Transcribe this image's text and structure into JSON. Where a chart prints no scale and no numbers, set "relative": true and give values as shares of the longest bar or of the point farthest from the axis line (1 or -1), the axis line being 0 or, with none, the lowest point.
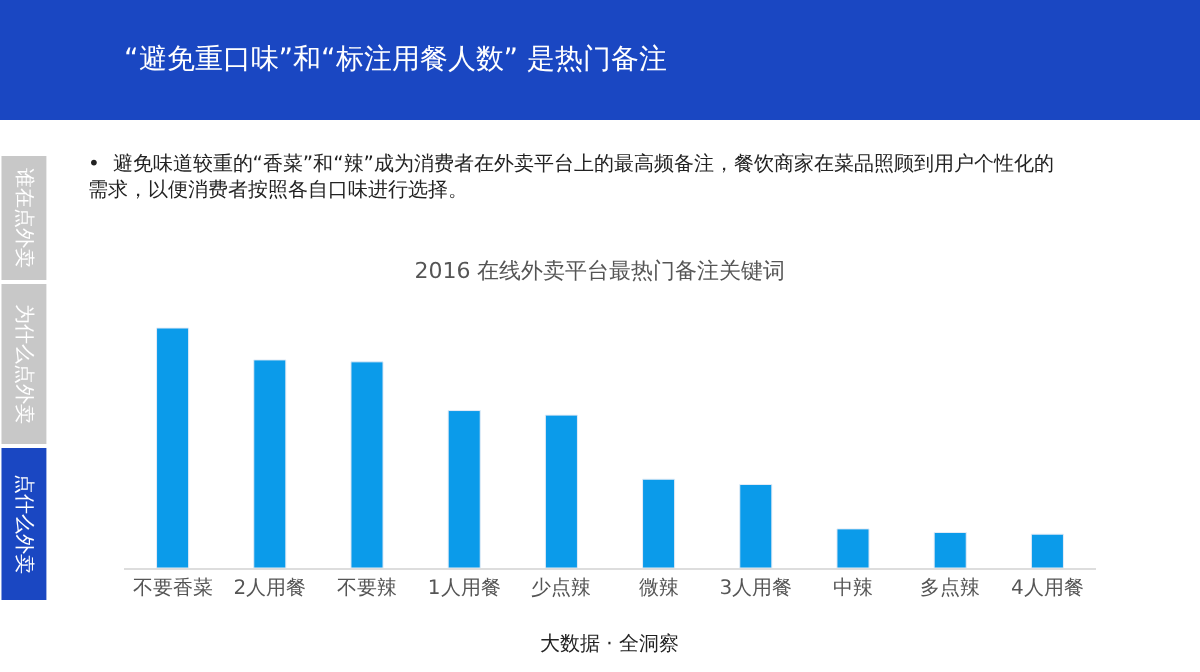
{
  "chart_data": {
    "type": "bar",
    "title": "2016 在线外卖平台最热门备注关键词",
    "categories": [
      "不要香菜",
      "2人用餐",
      "不要辣",
      "1人用餐",
      "少点辣",
      "微辣",
      "3人用餐",
      "中辣",
      "多点辣",
      "4人用餐"
    ],
    "values": [
      1,
      0.867,
      0.859,
      0.656,
      0.637,
      0.37,
      0.348,
      0.163,
      0.148,
      0.141
    ],
    "color": "#0b9bea",
    "relative": true,
    "annotations": [
      "“避免重口味”和“标注用餐人数” 是热门备注",
      "•  避免味道较重的“香菜”和“辣”成为消费者在外卖平台上的最高频备注，餐饮商家在菜品照顾到用户个性化的需求，以便消费者按照各自口味进行选择。",
      "谁在点外卖",
      "为什么点外卖",
      "点什么外卖",
      "大数据 · 全洞察"
    ]
  }
}
